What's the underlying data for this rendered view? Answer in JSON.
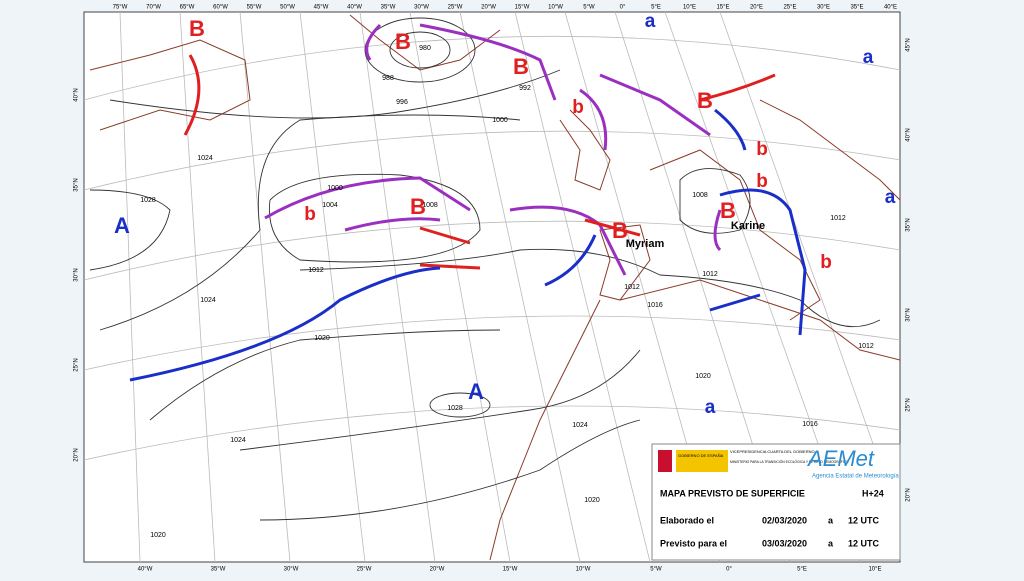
{
  "map": {
    "longitudes_top": [
      "75°W",
      "70°W",
      "65°W",
      "60°W",
      "55°W",
      "50°W",
      "45°W",
      "40°W",
      "35°W",
      "30°W",
      "25°W",
      "20°W",
      "15°W",
      "10°W",
      "5°W",
      "0°",
      "5°E",
      "10°E",
      "15°E",
      "20°E",
      "25°E",
      "30°E",
      "35°E",
      "40°E"
    ],
    "longitudes_bottom": [
      "40°W",
      "35°W",
      "30°W",
      "25°W",
      "20°W",
      "15°W",
      "10°W",
      "5°W",
      "0°",
      "5°E",
      "10°E"
    ],
    "latitudes_left": [
      "40°N",
      "35°N",
      "30°N",
      "25°N",
      "20°N"
    ],
    "latitudes_right": [
      "45°N",
      "40°N",
      "35°N",
      "30°N",
      "25°N",
      "20°N"
    ],
    "pressure_centers": [
      "B",
      "B",
      "B",
      "b",
      "B",
      "b",
      "b",
      "B",
      "b",
      "B",
      "B",
      "b",
      "A",
      "A",
      "a",
      "a",
      "a",
      "a"
    ],
    "system_names": [
      "Myriam",
      "Karine"
    ],
    "isobar_labels": [
      "980",
      "988",
      "992",
      "996",
      "1000",
      "1000",
      "1004",
      "1008",
      "1012",
      "1012",
      "1016",
      "1020",
      "1024",
      "1024",
      "1028",
      "1028",
      "1024",
      "1020",
      "1020",
      "1012",
      "1008",
      "1012",
      "1016",
      "1020",
      "1024",
      "1012"
    ],
    "legend": {
      "gov1": "GOBIERNO DE ESPAÑA",
      "gov2": "VICEPRESIDENCIA CUARTA DEL GOBIERNO",
      "gov3": "MINISTERIO PARA LA TRANSICIÓN ECOLÓGICA Y EL RETO DEMOGRÁFICO",
      "logo": "AEMet",
      "agency": "Agencia Estatal de Meteorología",
      "title": "MAPA PREVISTO DE SUPERFICIE",
      "lead": "H+24",
      "row1": [
        "Elaborado el",
        "02/03/2020",
        "a",
        "12 UTC"
      ],
      "row2": [
        "Previsto para el",
        "03/03/2020",
        "a",
        "12 UTC"
      ]
    }
  }
}
